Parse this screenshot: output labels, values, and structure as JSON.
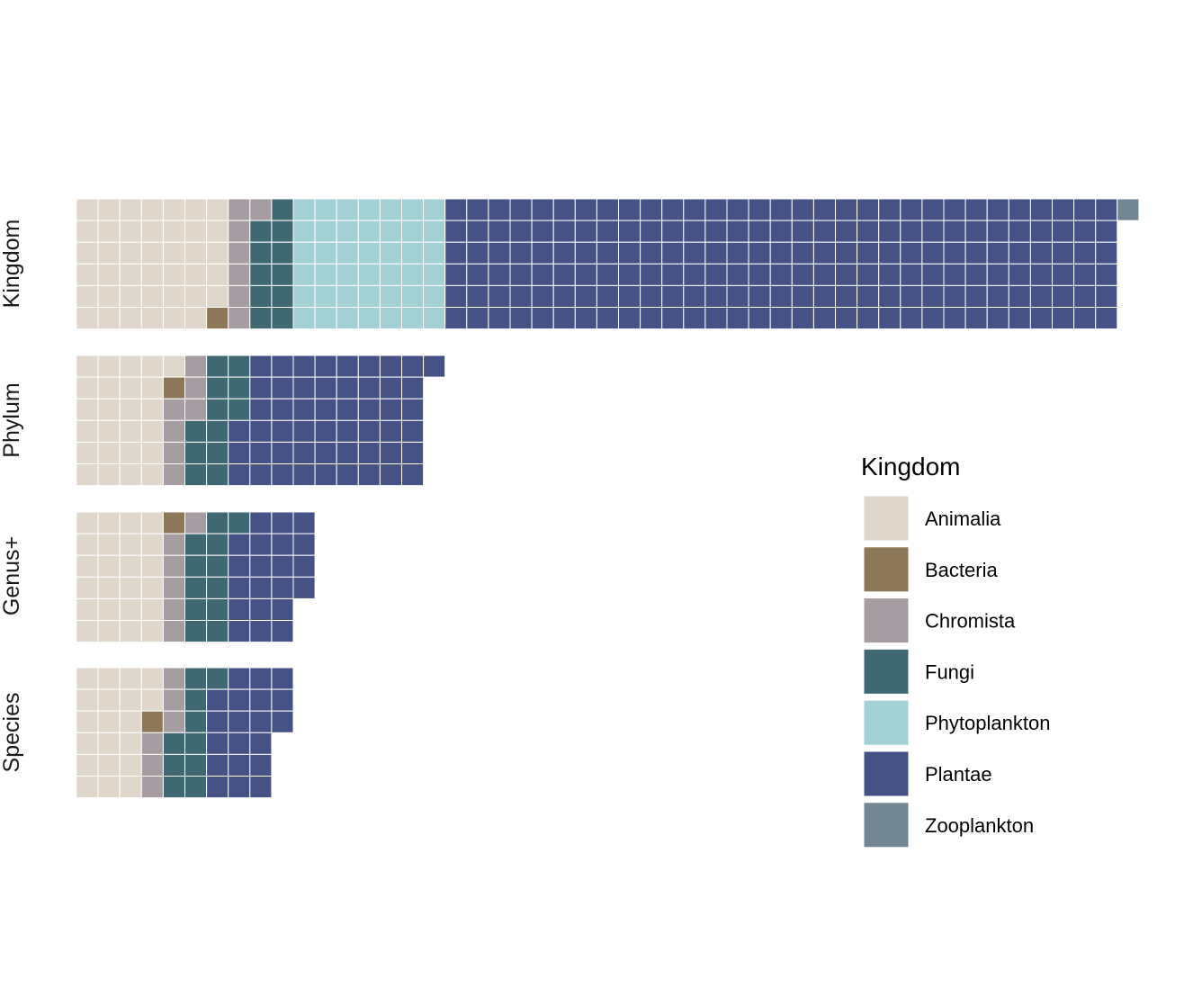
{
  "chart_data": {
    "type": "waffle",
    "facets": [
      "Kingdom",
      "Phylum",
      "Genus+",
      "Species"
    ],
    "categories": [
      "Animalia",
      "Bacteria",
      "Chromista",
      "Fungi",
      "Phytoplankton",
      "Plantae",
      "Zooplankton"
    ],
    "rows_per_facet": 6,
    "series": [
      {
        "facet": "Kingdom",
        "counts": [
          41,
          1,
          7,
          11,
          42,
          186,
          1
        ]
      },
      {
        "facet": "Phylum",
        "counts": [
          25,
          1,
          7,
          12,
          0,
          52,
          0
        ]
      },
      {
        "facet": "Genus+",
        "counts": [
          24,
          1,
          6,
          12,
          0,
          21,
          0
        ]
      },
      {
        "facet": "Species",
        "counts": [
          20,
          1,
          6,
          10,
          0,
          20,
          0
        ]
      }
    ],
    "legend": {
      "title": "Kingdom",
      "placement": "right",
      "entries": [
        "Animalia",
        "Bacteria",
        "Chromista",
        "Fungi",
        "Phytoplankton",
        "Plantae",
        "Zooplankton"
      ]
    },
    "colors": {
      "Animalia": "#DFD6CC",
      "Bacteria": "#8C7759",
      "Chromista": "#A69DA2",
      "Fungi": "#406873",
      "Phytoplankton": "#A3D0D4",
      "Plantae": "#465185",
      "Zooplankton": "#738694"
    },
    "grid": false
  }
}
